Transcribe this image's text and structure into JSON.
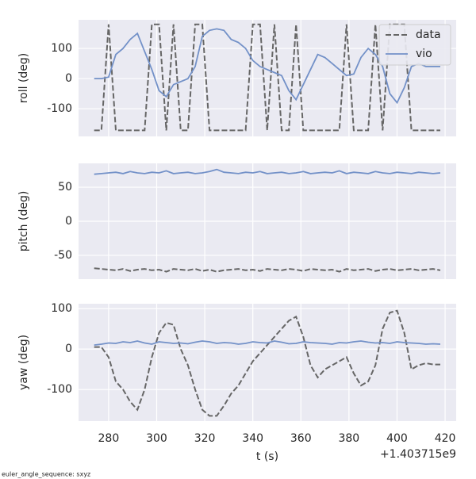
{
  "chart_data": [
    {
      "type": "line",
      "ylabel": "roll (deg)",
      "ylim": [
        -192,
        195
      ],
      "yticks": [
        -100,
        0,
        100
      ],
      "grid": true,
      "legend": "upper right",
      "x": [
        274,
        277,
        280,
        283,
        286,
        289,
        292,
        295,
        298,
        301,
        304,
        307,
        310,
        313,
        316,
        319,
        322,
        325,
        328,
        331,
        334,
        337,
        340,
        343,
        346,
        349,
        352,
        355,
        358,
        361,
        364,
        367,
        370,
        373,
        376,
        379,
        382,
        385,
        388,
        391,
        394,
        397,
        400,
        403,
        406,
        409,
        412,
        415,
        418
      ],
      "series": [
        {
          "name": "data",
          "color": "#666666",
          "dashed": true,
          "values": [
            -172,
            -172,
            180,
            -172,
            -172,
            -172,
            -172,
            -172,
            180,
            180,
            -172,
            180,
            -172,
            -172,
            180,
            180,
            -172,
            -172,
            -172,
            -172,
            -172,
            -172,
            180,
            180,
            -172,
            180,
            -172,
            -172,
            180,
            -172,
            -172,
            -172,
            -172,
            -172,
            -172,
            180,
            -172,
            -172,
            -172,
            180,
            -172,
            180,
            180,
            180,
            -172,
            -172,
            -172,
            -172,
            -172
          ]
        },
        {
          "name": "vio",
          "color": "#7391c8",
          "dashed": false,
          "values": [
            0,
            0,
            5,
            80,
            100,
            130,
            150,
            90,
            30,
            -40,
            -60,
            -20,
            -10,
            0,
            40,
            140,
            160,
            165,
            160,
            130,
            120,
            100,
            60,
            40,
            30,
            20,
            10,
            -40,
            -70,
            -20,
            30,
            80,
            70,
            50,
            30,
            10,
            15,
            70,
            100,
            80,
            40,
            -50,
            -80,
            -30,
            40,
            50,
            40,
            40,
            40
          ]
        }
      ]
    },
    {
      "type": "line",
      "ylabel": "pitch (deg)",
      "ylim": [
        -85,
        85
      ],
      "yticks": [
        -50,
        0,
        50
      ],
      "grid": true,
      "x": [
        274,
        277,
        280,
        283,
        286,
        289,
        292,
        295,
        298,
        301,
        304,
        307,
        310,
        313,
        316,
        319,
        322,
        325,
        328,
        331,
        334,
        337,
        340,
        343,
        346,
        349,
        352,
        355,
        358,
        361,
        364,
        367,
        370,
        373,
        376,
        379,
        382,
        385,
        388,
        391,
        394,
        397,
        400,
        403,
        406,
        409,
        412,
        415,
        418
      ],
      "series": [
        {
          "name": "data",
          "color": "#666666",
          "dashed": true,
          "values": [
            -69,
            -70,
            -71,
            -72,
            -70,
            -73,
            -71,
            -70,
            -72,
            -71,
            -74,
            -70,
            -71,
            -72,
            -70,
            -73,
            -71,
            -74,
            -72,
            -71,
            -70,
            -72,
            -71,
            -73,
            -70,
            -71,
            -72,
            -70,
            -71,
            -73,
            -70,
            -71,
            -72,
            -71,
            -74,
            -70,
            -72,
            -71,
            -70,
            -73,
            -71,
            -70,
            -72,
            -71,
            -70,
            -72,
            -71,
            -70,
            -72
          ]
        },
        {
          "name": "vio",
          "color": "#7391c8",
          "dashed": false,
          "values": [
            69,
            70,
            71,
            72,
            70,
            73,
            71,
            70,
            72,
            71,
            74,
            70,
            71,
            72,
            70,
            71,
            73,
            76,
            72,
            71,
            70,
            72,
            71,
            73,
            70,
            71,
            72,
            70,
            71,
            73,
            70,
            71,
            72,
            71,
            74,
            70,
            72,
            71,
            70,
            73,
            71,
            70,
            72,
            71,
            70,
            72,
            71,
            70,
            71
          ]
        }
      ]
    },
    {
      "type": "line",
      "ylabel": "yaw (deg)",
      "xlabel": "t (s)",
      "x_offset_label": "+1.403715e9",
      "ylim": [
        -178,
        112
      ],
      "yticks": [
        -100,
        0,
        100
      ],
      "grid": true,
      "xlim": [
        267.5,
        424.6
      ],
      "xticks": [
        280,
        300,
        320,
        340,
        360,
        380,
        400,
        420
      ],
      "x": [
        274,
        277,
        280,
        283,
        286,
        289,
        292,
        295,
        298,
        301,
        304,
        307,
        310,
        313,
        316,
        319,
        322,
        325,
        328,
        331,
        334,
        337,
        340,
        343,
        346,
        349,
        352,
        355,
        358,
        361,
        364,
        367,
        370,
        373,
        376,
        379,
        382,
        385,
        388,
        391,
        394,
        397,
        400,
        403,
        406,
        409,
        412,
        415,
        418
      ],
      "series": [
        {
          "name": "data",
          "color": "#666666",
          "dashed": true,
          "values": [
            5,
            5,
            -20,
            -80,
            -100,
            -130,
            -150,
            -100,
            -20,
            40,
            65,
            60,
            0,
            -40,
            -100,
            -150,
            -165,
            -165,
            -140,
            -110,
            -90,
            -60,
            -30,
            -10,
            10,
            30,
            50,
            70,
            80,
            30,
            -40,
            -70,
            -50,
            -40,
            -30,
            -20,
            -60,
            -90,
            -80,
            -40,
            50,
            90,
            95,
            40,
            -50,
            -40,
            -35,
            -38,
            -38
          ]
        },
        {
          "name": "vio",
          "color": "#7391c8",
          "dashed": false,
          "values": [
            10,
            12,
            15,
            14,
            18,
            16,
            20,
            15,
            12,
            18,
            16,
            14,
            15,
            13,
            17,
            20,
            18,
            14,
            16,
            15,
            12,
            14,
            18,
            16,
            15,
            20,
            17,
            13,
            14,
            18,
            16,
            15,
            14,
            12,
            16,
            15,
            18,
            20,
            17,
            15,
            16,
            14,
            18,
            16,
            15,
            14,
            12,
            13,
            12
          ]
        }
      ]
    }
  ],
  "footer": "euler_angle_sequence: sxyz"
}
